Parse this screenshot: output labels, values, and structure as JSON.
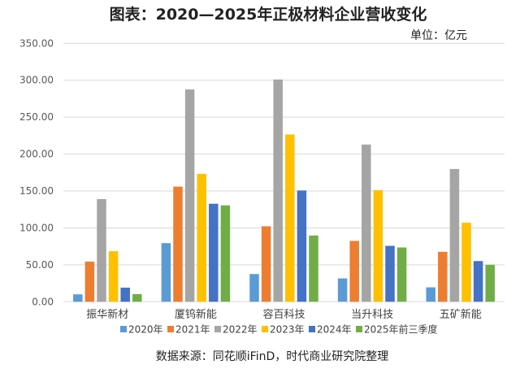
{
  "chart_data": {
    "type": "bar",
    "title": "图表：2020—2025年正极材料企业营收变化",
    "unit_label": "单位：亿元",
    "source": "数据来源：同花顺iFinD，时代商业研究院整理",
    "categories": [
      "振华新材",
      "厦钨新能",
      "容百科技",
      "当升科技",
      "五矿新能"
    ],
    "ylim": [
      0,
      350
    ],
    "yticks": [
      "0.00",
      "50.00",
      "100.00",
      "150.00",
      "200.00",
      "250.00",
      "300.00",
      "350.00"
    ],
    "grid": true,
    "legend_position": "bottom",
    "series": [
      {
        "name": "2020年",
        "color": "#5B9BD5",
        "values": [
          10,
          79.4,
          37.5,
          31.6,
          19.5
        ]
      },
      {
        "name": "2021年",
        "color": "#ED7D31",
        "values": [
          54.4,
          155.9,
          102.2,
          82.4,
          67.6
        ]
      },
      {
        "name": "2022年",
        "color": "#A5A5A5",
        "values": [
          139,
          287.5,
          301,
          212.9,
          179.8
        ]
      },
      {
        "name": "2023年",
        "color": "#FFC000",
        "values": [
          68.4,
          173.2,
          226.5,
          151.1,
          107
        ]
      },
      {
        "name": "2024年",
        "color": "#4472C4",
        "values": [
          19.1,
          132.7,
          150.7,
          75.7,
          55.1
        ]
      },
      {
        "name": "2025年前三季度",
        "color": "#70AD47",
        "values": [
          10.3,
          130.5,
          89.7,
          73.5,
          50
        ]
      }
    ]
  }
}
